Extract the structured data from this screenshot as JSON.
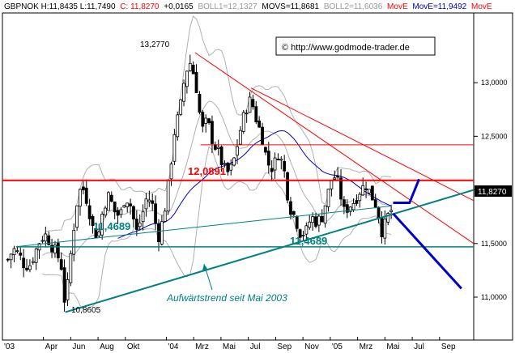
{
  "header": {
    "symbol": "GBPNOK",
    "high": "H:11,8435",
    "low": "L:11,7490",
    "close": "C: 11,8270",
    "change": "+0,0165",
    "boll1": "BOLL1=12,1327",
    "movs": "MOVS=11,8681",
    "boll2": "BOLL2=11,6036",
    "move_label": "MovE",
    "move_value": "MovE=11,9492",
    "move_label2": "MovE"
  },
  "watermark": "© http://www.godmode-trader.de",
  "current_price_label": "11,8270",
  "annotations": {
    "high_label": "13,2770",
    "low_label": "10,8605",
    "resistance_label": "12,0891",
    "support_label_left": "11,4689",
    "support_label_mid": "11,4689",
    "trend_text": "Aufwärtstrend seit Mai 2003"
  },
  "colors": {
    "red": "#ff0000",
    "teal": "#008080",
    "blue": "#0000cc",
    "band": "#b0b0b0",
    "candle": "#000000",
    "header_red": "#ff0000",
    "header_grey": "#999999",
    "price_box": "#000000"
  },
  "chart_data": {
    "type": "candlestick",
    "ylim": [
      10.6,
      13.65
    ],
    "yticks": [
      11.0,
      11.5,
      12.0,
      12.5,
      13.0
    ],
    "ytick_labels": [
      "11,0000",
      "11,5000",
      "12,0000",
      "12,5000",
      "13,0000"
    ],
    "xticks": [
      "'03",
      "Apr",
      "Jun",
      "Aug",
      "Okt",
      "'04",
      "Mrz",
      "Mai",
      "Jul",
      "Sep",
      "Nov",
      "'05",
      "Mrz",
      "Mai",
      "Jul",
      "Sep"
    ],
    "xtick_months": [
      0,
      3,
      5,
      7,
      9,
      12,
      14,
      16,
      18,
      20,
      22,
      24,
      26,
      28,
      30,
      32
    ],
    "x_month_range": [
      0,
      34.5
    ],
    "close_path": [
      [
        0.4,
        11.35
      ],
      [
        0.8,
        11.45
      ],
      [
        1.2,
        11.4
      ],
      [
        1.6,
        11.3
      ],
      [
        2.0,
        11.3
      ],
      [
        2.4,
        11.42
      ],
      [
        2.8,
        11.55
      ],
      [
        3.2,
        11.58
      ],
      [
        3.6,
        11.48
      ],
      [
        4.0,
        11.4
      ],
      [
        4.3,
        11.3
      ],
      [
        4.6,
        10.9
      ],
      [
        5.0,
        11.4
      ],
      [
        5.4,
        11.85
      ],
      [
        5.8,
        12.05
      ],
      [
        6.2,
        11.9
      ],
      [
        6.6,
        11.65
      ],
      [
        7.0,
        11.55
      ],
      [
        7.4,
        11.85
      ],
      [
        7.8,
        11.95
      ],
      [
        8.2,
        11.8
      ],
      [
        8.6,
        11.75
      ],
      [
        9.0,
        11.95
      ],
      [
        9.4,
        11.85
      ],
      [
        9.8,
        11.6
      ],
      [
        10.2,
        11.75
      ],
      [
        10.6,
        11.95
      ],
      [
        11.0,
        11.85
      ],
      [
        11.4,
        11.55
      ],
      [
        11.8,
        11.75
      ],
      [
        12.2,
        12.1
      ],
      [
        12.6,
        12.55
      ],
      [
        13.0,
        12.75
      ],
      [
        13.4,
        13.1
      ],
      [
        13.8,
        13.2
      ],
      [
        14.2,
        12.95
      ],
      [
        14.6,
        12.55
      ],
      [
        15.0,
        12.65
      ],
      [
        15.4,
        12.45
      ],
      [
        15.8,
        12.35
      ],
      [
        16.2,
        12.2
      ],
      [
        16.6,
        12.15
      ],
      [
        17.0,
        12.3
      ],
      [
        17.4,
        12.55
      ],
      [
        17.8,
        12.75
      ],
      [
        18.2,
        12.85
      ],
      [
        18.6,
        12.65
      ],
      [
        19.0,
        12.5
      ],
      [
        19.4,
        12.25
      ],
      [
        19.8,
        12.2
      ],
      [
        20.2,
        12.35
      ],
      [
        20.6,
        12.2
      ],
      [
        21.0,
        11.85
      ],
      [
        21.4,
        11.75
      ],
      [
        21.8,
        11.6
      ],
      [
        22.2,
        11.6
      ],
      [
        22.6,
        11.75
      ],
      [
        23.0,
        11.7
      ],
      [
        23.4,
        11.75
      ],
      [
        23.8,
        11.95
      ],
      [
        24.2,
        12.15
      ],
      [
        24.6,
        12.05
      ],
      [
        25.0,
        11.8
      ],
      [
        25.4,
        11.85
      ],
      [
        25.8,
        11.9
      ],
      [
        26.2,
        12.0
      ],
      [
        26.6,
        12.05
      ],
      [
        27.0,
        11.95
      ],
      [
        27.4,
        11.85
      ],
      [
        27.8,
        11.6
      ],
      [
        28.2,
        11.75
      ],
      [
        28.55,
        11.83
      ]
    ],
    "lines": {
      "resistance_hline": 12.0891,
      "support_hline": 11.4689,
      "upper_hline": 12.42,
      "upper_hline_x": [
        14.5,
        34.5
      ],
      "downtrend_1": [
        [
          14.1,
          13.28
        ],
        [
          34.5,
          11.5
        ]
      ],
      "downtrend_2": [
        [
          18.2,
          12.95
        ],
        [
          34.5,
          11.9
        ]
      ],
      "uptrend": [
        [
          4.6,
          10.86
        ],
        [
          34.5,
          12.0
        ]
      ],
      "uptrend_short": [
        [
          1.0,
          11.47
        ],
        [
          28.5,
          11.85
        ]
      ],
      "projection_up": [
        [
          28.6,
          11.88
        ],
        [
          29.8,
          11.88
        ],
        [
          30.5,
          12.1
        ]
      ],
      "projection_down": [
        [
          28.6,
          11.78
        ],
        [
          33.6,
          11.08
        ]
      ]
    }
  }
}
